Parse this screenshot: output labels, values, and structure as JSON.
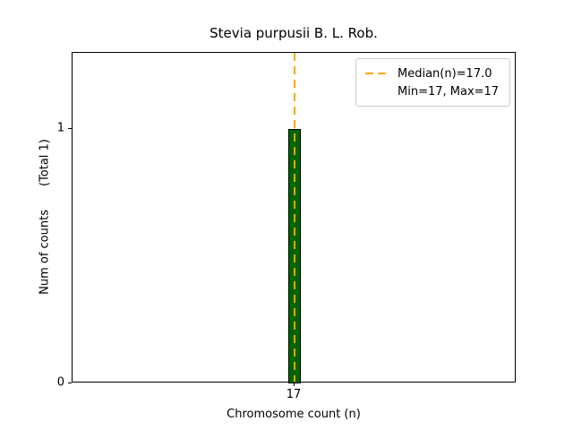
{
  "title": "Stevia purpusii B. L. Rob.",
  "axes": {
    "xlabel": "Chromosome count (n)",
    "ylabel": "Num of counts",
    "ylabel_total": "(Total 1)",
    "xticks": [
      "17"
    ],
    "yticks": [
      "0",
      "1"
    ]
  },
  "legend": {
    "entries": [
      {
        "label": "Median(n)=17.0",
        "swatch": "dashed-line"
      },
      {
        "label": "Min=17, Max=17",
        "swatch": "none"
      }
    ]
  },
  "chart_data": {
    "type": "bar",
    "title": "Stevia purpusii B. L. Rob.",
    "xlabel": "Chromosome count (n)",
    "ylabel": "Num of counts    (Total 1)",
    "categories": [
      17
    ],
    "values": [
      1
    ],
    "total_counts": 1,
    "xlim": [
      16.5,
      17.5
    ],
    "ylim": [
      0,
      1.3
    ],
    "xticks": [
      17
    ],
    "yticks": [
      0,
      1
    ],
    "bar_color": "#006400",
    "bar_edge_color": "#000000",
    "median_line": {
      "x": 17,
      "value": 17.0,
      "color": "#FFA500",
      "style": "dashed",
      "label": "Median(n)=17.0"
    },
    "min": 17,
    "max": 17,
    "legend_position": "upper right",
    "grid": false
  }
}
